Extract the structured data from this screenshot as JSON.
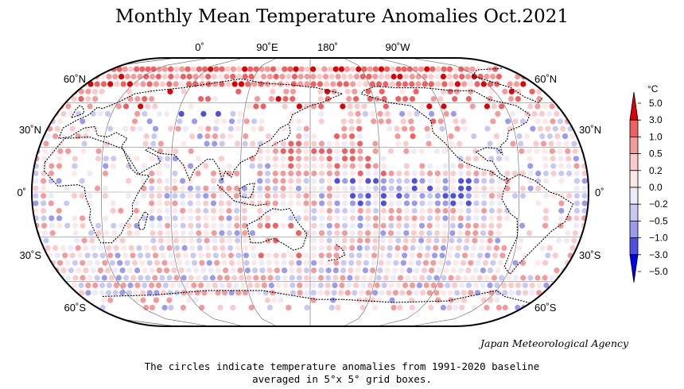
{
  "title": "Monthly Mean Temperature Anomalies Oct.2021",
  "lon_labels": [
    "0˚",
    "90˚E",
    "180˚",
    "90˚W"
  ],
  "lat_labels_left": [
    "60˚N",
    "30˚N",
    "0˚",
    "30˚S",
    "60˚S"
  ],
  "lat_labels_right": [
    "60˚N",
    "30˚N",
    "0˚",
    "30˚S",
    "60˚S"
  ],
  "credit": "Japan Meteorological Agency",
  "caption_line1": "The circles indicate temperature anomalies from 1991-2020 baseline",
  "caption_line2": "averaged in 5°x 5° grid boxes.",
  "legend": {
    "unit": "°C",
    "labels": [
      "5.0",
      "3.0",
      "1.0",
      "0.5",
      "0.2",
      "0.0",
      "−0.2",
      "−0.5",
      "−1.0",
      "−3.0",
      "−5.0"
    ],
    "colors": [
      "#e00000",
      "#f06060",
      "#f59a9a",
      "#fbcaca",
      "#fde8e8",
      "#ebebfb",
      "#c8c8f5",
      "#9a9aee",
      "#5050e0",
      "#0000f0"
    ]
  },
  "colors": {
    "outline": "#000000",
    "grid": "#888888",
    "coast": "#000000"
  }
}
